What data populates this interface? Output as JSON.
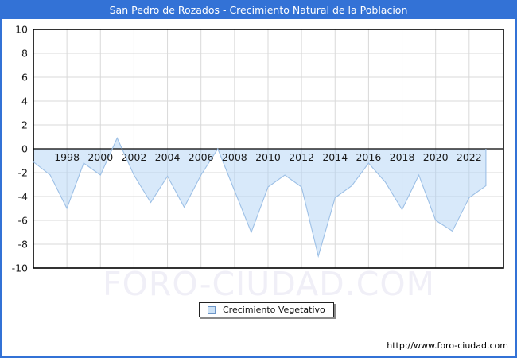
{
  "window": {
    "title": "San Pedro de Rozados - Crecimiento Natural de la Poblacion"
  },
  "colors": {
    "titlebar_bg": "#3372d6",
    "titlebar_text": "#ffffff",
    "plot_border": "#000000",
    "gridline": "#d9d9d9",
    "zero_line": "#000000",
    "area_fill": "rgba(173,208,244,0.48)",
    "area_line": "#9dc0e6",
    "tick_text": "#1a1a1a",
    "watermark_text": "#f0eff7"
  },
  "chart_data": {
    "type": "area",
    "title": "San Pedro de Rozados - Crecimiento Natural de la Poblacion",
    "series_name": "Crecimiento Vegetativo",
    "x": [
      1996,
      1997,
      1998,
      1999,
      2000,
      2001,
      2002,
      2003,
      2004,
      2005,
      2006,
      2007,
      2008,
      2009,
      2010,
      2011,
      2012,
      2013,
      2014,
      2015,
      2016,
      2017,
      2018,
      2019,
      2020,
      2021,
      2022,
      2023
    ],
    "values": [
      -1.1,
      -2.2,
      -5,
      -1.2,
      -2.2,
      0.9,
      -2.2,
      -4.5,
      -2.3,
      -4.9,
      -2.2,
      0,
      -3.5,
      -7,
      -3.2,
      -2.2,
      -3.2,
      -9,
      -4.1,
      -3.1,
      -1.2,
      -2.8,
      -5.1,
      -2.2,
      -6,
      -6.9,
      -4.1,
      -3.1
    ],
    "ylim": [
      -10,
      10
    ],
    "y_ticks": [
      10,
      8,
      6,
      4,
      2,
      0,
      -2,
      -4,
      -6,
      -8,
      -10
    ],
    "x_tick_years": [
      1998,
      2000,
      2002,
      2004,
      2006,
      2008,
      2010,
      2012,
      2014,
      2016,
      2018,
      2020,
      2022
    ],
    "grid": true,
    "legend_position": "bottom-center",
    "xlabel": "",
    "ylabel": ""
  },
  "legend": {
    "label": "Crecimiento Vegetativo"
  },
  "watermark": "FORO-CIUDAD.COM",
  "footer": {
    "url": "http://www.foro-ciudad.com"
  }
}
